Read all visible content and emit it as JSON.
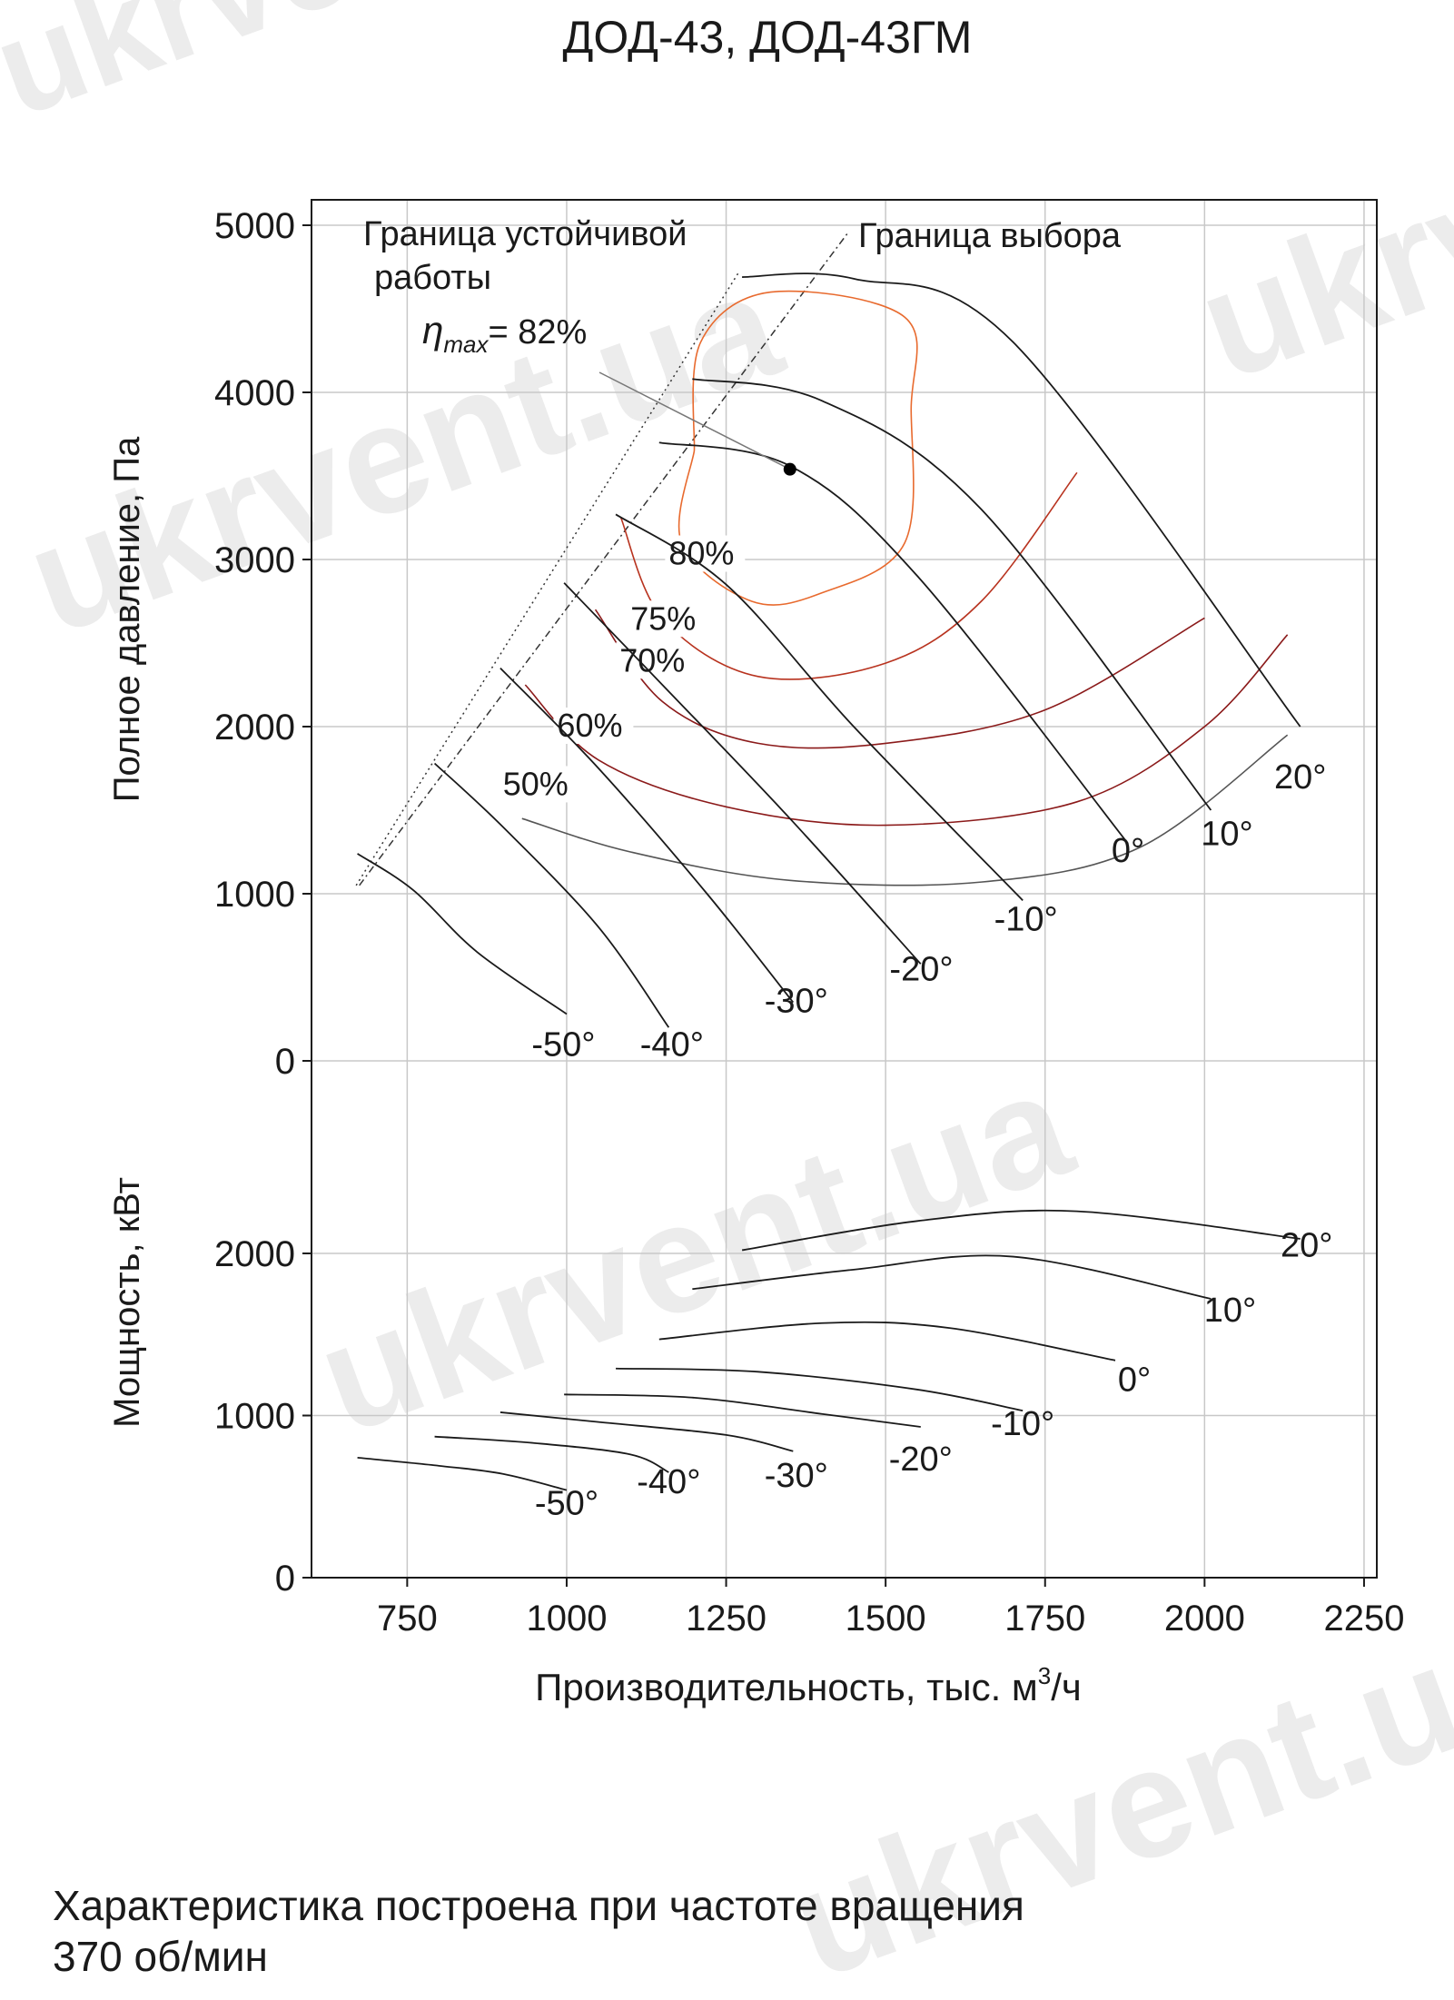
{
  "page": {
    "footnote_line1": "Характеристика построена при частоте вращения",
    "footnote_line2": "370 об/мин",
    "watermark": "ukrvent.ua",
    "watermark_color": "#e6e6e6"
  },
  "chart_data": {
    "type": "line",
    "title": "ДОД-43, ДОД-43ГМ",
    "xlabel_main": "Производительность, тыс. м",
    "xlabel_sup": "3",
    "xlabel_tail": "/ч",
    "x_ticks": [
      "750",
      "1000",
      "1250",
      "1500",
      "1750",
      "2000",
      "2250"
    ],
    "xlim": [
      600,
      2270
    ],
    "grid": true,
    "colors": {
      "curve": "#1a1a1a",
      "efficiency_dark": "#8b1a1a",
      "efficiency_light": "#e86a2e",
      "grid": "#c8c8c8"
    },
    "panels": [
      {
        "id": "pressure",
        "ylabel": "Полное давление, Па",
        "y_ticks": [
          "5000",
          "4000",
          "3000",
          "2000",
          "1000",
          "0"
        ],
        "ylim": [
          0,
          5000
        ],
        "annotations": {
          "stability_line1": "Граница устойчивой",
          "stability_line2": "работы",
          "selection": "Граница выбора",
          "eta_symbol": "η",
          "eta_sub": "max",
          "eta_value": "= 82%",
          "eta_point": [
            1350,
            3540
          ]
        },
        "boundary_lines": [
          {
            "name": "stability",
            "points": [
              [
                670,
                1050
              ],
              [
                1270,
                4720
              ]
            ]
          },
          {
            "name": "selection",
            "points": [
              [
                675,
                1050
              ],
              [
                1440,
                4950
              ]
            ]
          }
        ],
        "series": [
          {
            "label": "-50°",
            "points": [
              [
                672,
                1240
              ],
              [
                760,
                1020
              ],
              [
                860,
                650
              ],
              [
                1000,
                280
              ]
            ],
            "label_at": [
              995,
              30
            ]
          },
          {
            "label": "-40°",
            "points": [
              [
                793,
                1780
              ],
              [
                900,
                1400
              ],
              [
                1050,
                800
              ],
              [
                1160,
                200
              ]
            ],
            "label_at": [
              1165,
              30
            ]
          },
          {
            "label": "-30°",
            "points": [
              [
                896,
                2350
              ],
              [
                1050,
                1750
              ],
              [
                1220,
                1000
              ],
              [
                1355,
                350
              ]
            ],
            "label_at": [
              1360,
              290
            ]
          },
          {
            "label": "-20°",
            "points": [
              [
                996,
                2860
              ],
              [
                1150,
                2250
              ],
              [
                1350,
                1450
              ],
              [
                1555,
                580
              ]
            ],
            "label_at": [
              1556,
              480
            ]
          },
          {
            "label": "-10°",
            "points": [
              [
                1077,
                3270
              ],
              [
                1250,
                2850
              ],
              [
                1450,
                2000
              ],
              [
                1715,
                960
              ]
            ],
            "label_at": [
              1720,
              780
            ]
          },
          {
            "label": "0°",
            "points": [
              [
                1145,
                3700
              ],
              [
                1350,
                3560
              ],
              [
                1550,
                2900
              ],
              [
                1880,
                1300
              ]
            ],
            "label_at": [
              1880,
              1190
            ]
          },
          {
            "label": "10°",
            "points": [
              [
                1197,
                4080
              ],
              [
                1400,
                3950
              ],
              [
                1650,
                3300
              ],
              [
                2010,
                1500
              ]
            ],
            "label_at": [
              2035,
              1290
            ]
          },
          {
            "label": "20°",
            "points": [
              [
                1275,
                4690
              ],
              [
                1450,
                4680
              ],
              [
                1700,
                4300
              ],
              [
                2150,
                2000
              ]
            ],
            "label_at": [
              2150,
              1630
            ]
          }
        ],
        "efficiency": [
          {
            "label": "50%",
            "label_at": [
              900,
              1590
            ],
            "color": "#555555",
            "points": [
              [
                930,
                1450
              ],
              [
                1100,
                1250
              ],
              [
                1350,
                1080
              ],
              [
                1650,
                1070
              ],
              [
                1900,
                1280
              ],
              [
                2130,
                1950
              ]
            ]
          },
          {
            "label": "60%",
            "label_at": [
              985,
              1940
            ],
            "color": "#8b1a1a",
            "points": [
              [
                935,
                2250
              ],
              [
                1050,
                1800
              ],
              [
                1250,
                1520
              ],
              [
                1500,
                1410
              ],
              [
                1800,
                1550
              ],
              [
                2000,
                2000
              ],
              [
                2130,
                2550
              ]
            ]
          },
          {
            "label": "70%",
            "label_at": [
              1083,
              2330
            ],
            "color": "#8b1a1a",
            "points": [
              [
                1045,
                2700
              ],
              [
                1150,
                2150
              ],
              [
                1300,
                1900
              ],
              [
                1500,
                1900
              ],
              [
                1750,
                2100
              ],
              [
                2000,
                2650
              ]
            ]
          },
          {
            "label": "75%",
            "label_at": [
              1100,
              2580
            ],
            "color": "#b8331f",
            "points": [
              [
                1085,
                3250
              ],
              [
                1150,
                2650
              ],
              [
                1300,
                2300
              ],
              [
                1500,
                2380
              ],
              [
                1650,
                2750
              ],
              [
                1800,
                3520
              ]
            ]
          },
          {
            "label": "80%",
            "label_at": [
              1160,
              2970
            ],
            "color": "#e86a2e",
            "points": [
              [
                1200,
                3650
              ],
              [
                1180,
                3100
              ],
              [
                1290,
                2750
              ],
              [
                1400,
                2800
              ],
              [
                1530,
                3100
              ],
              [
                1540,
                3900
              ],
              [
                1530,
                4450
              ],
              [
                1320,
                4600
              ],
              [
                1210,
                4300
              ],
              [
                1200,
                3650
              ]
            ]
          }
        ]
      },
      {
        "id": "power",
        "ylabel": "Мощность, кВт",
        "y_ticks": [
          "2000",
          "1000",
          "0"
        ],
        "ylim": [
          0,
          2600
        ],
        "series": [
          {
            "label": "-50°",
            "points": [
              [
                672,
                740
              ],
              [
                800,
                690
              ],
              [
                900,
                640
              ],
              [
                1000,
                540
              ]
            ],
            "label_at": [
              1000,
              390
            ]
          },
          {
            "label": "-40°",
            "points": [
              [
                793,
                870
              ],
              [
                950,
                830
              ],
              [
                1100,
                760
              ],
              [
                1160,
                650
              ]
            ],
            "label_at": [
              1160,
              520
            ]
          },
          {
            "label": "-30°",
            "points": [
              [
                896,
                1020
              ],
              [
                1050,
                960
              ],
              [
                1250,
                880
              ],
              [
                1355,
                780
              ]
            ],
            "label_at": [
              1360,
              560
            ]
          },
          {
            "label": "-20°",
            "points": [
              [
                996,
                1130
              ],
              [
                1200,
                1110
              ],
              [
                1400,
                1010
              ],
              [
                1555,
                930
              ]
            ],
            "label_at": [
              1555,
              660
            ]
          },
          {
            "label": "-10°",
            "points": [
              [
                1077,
                1290
              ],
              [
                1300,
                1270
              ],
              [
                1550,
                1160
              ],
              [
                1715,
                1030
              ]
            ],
            "label_at": [
              1715,
              880
            ]
          },
          {
            "label": "0°",
            "points": [
              [
                1145,
                1470
              ],
              [
                1400,
                1570
              ],
              [
                1600,
                1540
              ],
              [
                1860,
                1340
              ]
            ],
            "label_at": [
              1890,
              1150
            ]
          },
          {
            "label": "10°",
            "points": [
              [
                1197,
                1780
              ],
              [
                1450,
                1900
              ],
              [
                1700,
                1980
              ],
              [
                2010,
                1720
              ]
            ],
            "label_at": [
              2040,
              1580
            ]
          },
          {
            "label": "20°",
            "points": [
              [
                1275,
                2020
              ],
              [
                1550,
                2200
              ],
              [
                1800,
                2260
              ],
              [
                2150,
                2090
              ]
            ],
            "label_at": [
              2160,
              1980
            ]
          }
        ]
      }
    ]
  }
}
